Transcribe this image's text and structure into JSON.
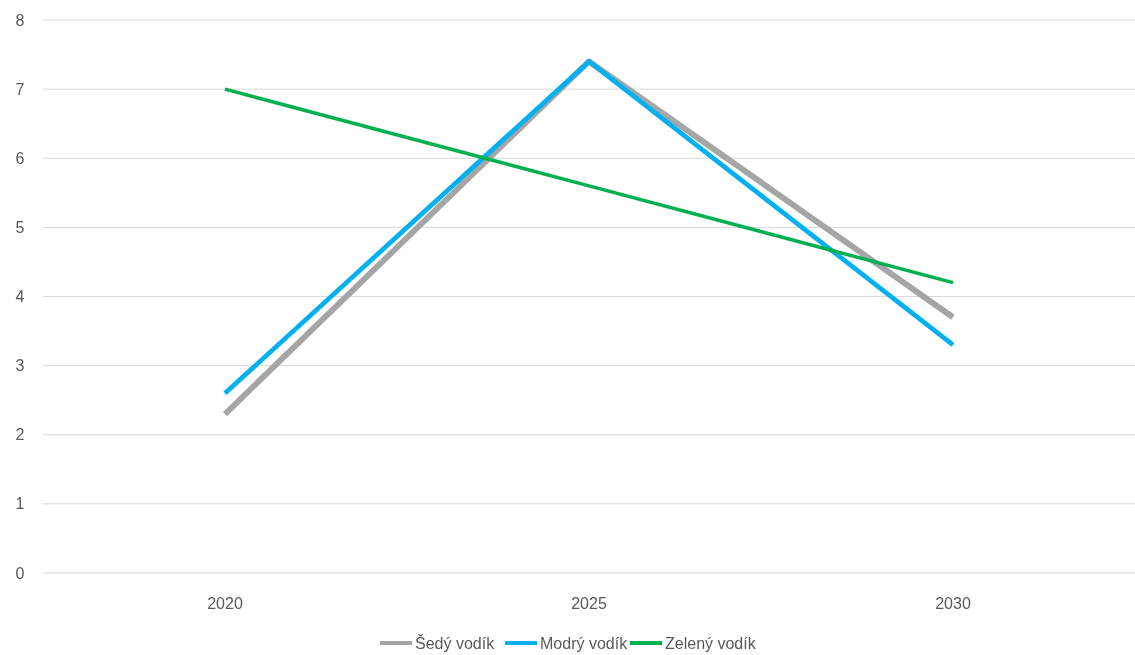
{
  "chart_data": {
    "type": "line",
    "categories": [
      "2020",
      "2025",
      "2030"
    ],
    "series": [
      {
        "name": "Šedý vodík",
        "color": "#a5a5a5",
        "values": [
          2.3,
          7.4,
          3.7
        ]
      },
      {
        "name": "Modrý vodík",
        "color": "#00b0f0",
        "values": [
          2.6,
          7.4,
          3.3
        ]
      },
      {
        "name": "Zelený vodík",
        "color": "#00b050",
        "values": [
          7,
          5.6,
          4.2
        ]
      }
    ],
    "ylim": [
      0,
      8
    ],
    "yticks": [
      0,
      1,
      2,
      3,
      4,
      5,
      6,
      7,
      8
    ],
    "grid": "y",
    "legend": "bottom",
    "marker": "none",
    "line_style": "solid"
  }
}
